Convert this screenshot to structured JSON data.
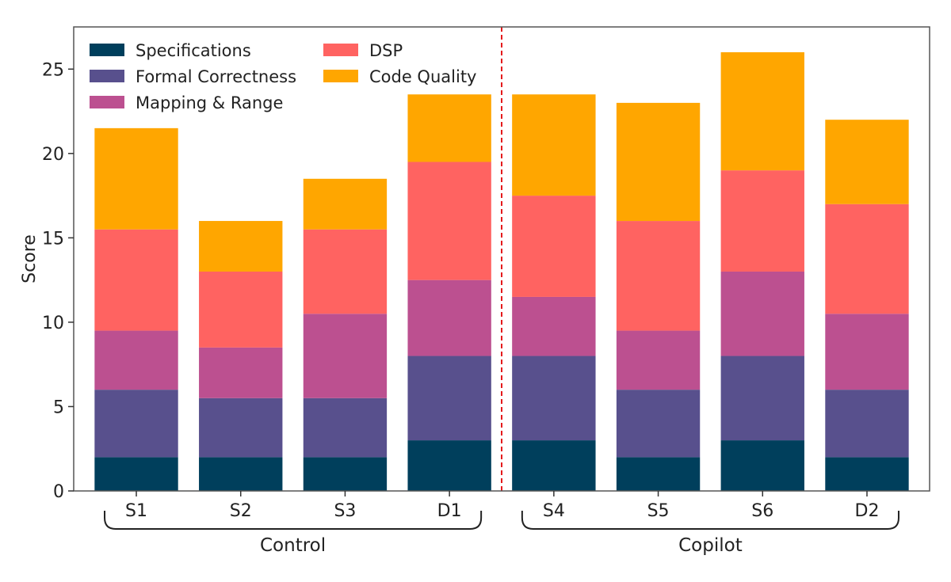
{
  "chart_data": {
    "type": "bar",
    "stacked": true,
    "categories": [
      "S1",
      "S2",
      "S3",
      "D1",
      "S4",
      "S5",
      "S6",
      "D2"
    ],
    "groups": [
      {
        "label": "Control",
        "categories": [
          "S1",
          "S2",
          "S3",
          "D1"
        ]
      },
      {
        "label": "Copilot",
        "categories": [
          "S4",
          "S5",
          "S6",
          "D2"
        ]
      }
    ],
    "separator_after": "D1",
    "separator_style": "red dashed vertical line",
    "series": [
      {
        "name": "Specifications",
        "color": "#003f5c",
        "values": [
          2,
          2,
          2,
          3,
          3,
          2,
          3,
          2
        ]
      },
      {
        "name": "Formal Correctness",
        "color": "#58508d",
        "values": [
          4,
          3.5,
          3.5,
          5,
          5,
          4,
          5,
          4
        ]
      },
      {
        "name": "Mapping & Range",
        "color": "#bc5090",
        "values": [
          3.5,
          3,
          5,
          4.5,
          3.5,
          3.5,
          5,
          4.5
        ]
      },
      {
        "name": "DSP",
        "color": "#ff6361",
        "values": [
          6,
          4.5,
          5,
          7,
          6,
          6.5,
          6,
          6.5
        ]
      },
      {
        "name": "Code Quality",
        "color": "#ffa600",
        "values": [
          6,
          3,
          3,
          4,
          6,
          7,
          7,
          5
        ]
      }
    ],
    "ylabel": "Score",
    "xlabel": "",
    "ylim": [
      0,
      27.5
    ],
    "yticks": [
      0,
      5,
      10,
      15,
      20,
      25
    ],
    "grid": false,
    "legend_position": "top-left"
  }
}
